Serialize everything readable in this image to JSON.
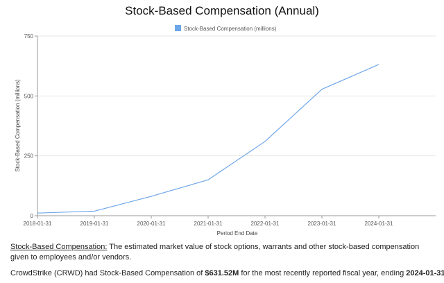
{
  "chart_data": {
    "type": "line",
    "title": "Stock-Based Compensation (Annual)",
    "xlabel": "Period End Date",
    "ylabel": "Stock-Based Compensation (millions)",
    "legend_position": "top",
    "grid": "horizontal",
    "ylim": [
      0,
      750
    ],
    "yticks": [
      "0",
      "250",
      "500",
      "750"
    ],
    "ytick_values": [
      0,
      250,
      500,
      750
    ],
    "x": [
      "2018-01-31",
      "2019-01-31",
      "2020-01-31",
      "2021-01-31",
      "2022-01-31",
      "2023-01-31",
      "2024-01-31"
    ],
    "series": [
      {
        "name": "Stock-Based Compensation (millions)",
        "color": "#6ea6ea",
        "values": [
          11,
          19,
          81,
          150,
          310,
          528,
          631.52
        ]
      }
    ]
  },
  "description": {
    "term": "Stock-Based Compensation:",
    "text": " The estimated market value of stock options, warrants and other stock-based compensation given to employees and/or vendors."
  },
  "summary": {
    "prefix": "CrowdStrike (CRWD) had Stock-Based Compensation of ",
    "value": "$631.52M",
    "middle": " for the most recently reported fiscal year, ending ",
    "date": "2024-01-31",
    "suffix": "."
  }
}
